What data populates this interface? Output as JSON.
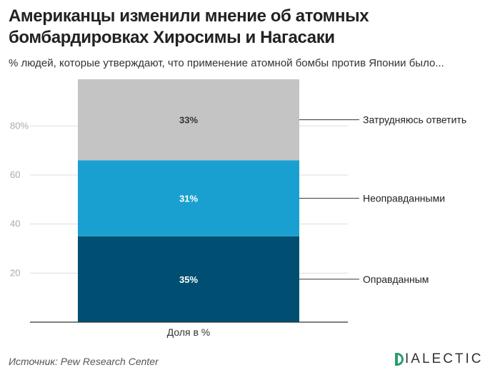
{
  "title": "Американцы изменили мнение об атомных бомбардировках Хиросимы и Нагасаки",
  "subtitle": "% людей, которые утверждают, что применение атомной бомбы против Японии было...",
  "source": "Источник: Pew Research Center",
  "brand": {
    "name": "ДIALECTIC",
    "rest": "IALECTIC",
    "accent": "#2a9d6f"
  },
  "chart_data": {
    "type": "bar",
    "stacked": true,
    "categories": [
      "Доля в %"
    ],
    "xlabel": "Доля в %",
    "ylabel": "",
    "ylim": [
      0,
      99
    ],
    "yticks": [
      20,
      40,
      60,
      80
    ],
    "ytick_labels": [
      "20",
      "40",
      "60",
      "80%"
    ],
    "grid": true,
    "legend": "right",
    "series": [
      {
        "name": "Оправданным",
        "values": [
          35
        ],
        "label": "35%",
        "color": "#004f72",
        "label_color": "#ffffff"
      },
      {
        "name": "Неоправданными",
        "values": [
          31
        ],
        "label": "31%",
        "color": "#1aa0d0",
        "label_color": "#ffffff"
      },
      {
        "name": "Затрудняюсь ответить",
        "values": [
          33
        ],
        "label": "33%",
        "color": "#c4c4c4",
        "label_color": "#333333"
      }
    ]
  }
}
